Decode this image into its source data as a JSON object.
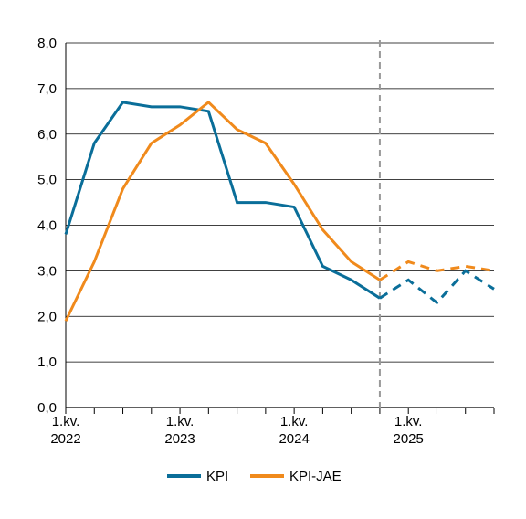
{
  "chart_data": {
    "type": "line",
    "title": "",
    "xlabel": "",
    "ylabel": "",
    "x": [
      "2022Q1",
      "2022Q2",
      "2022Q3",
      "2022Q4",
      "2023Q1",
      "2023Q2",
      "2023Q3",
      "2023Q4",
      "2024Q1",
      "2024Q2",
      "2024Q3",
      "2024Q4",
      "2025Q1",
      "2025Q2",
      "2025Q3",
      "2025Q4"
    ],
    "x_tick_labels": [
      {
        "x": "2022Q1",
        "line1": "1.kv.",
        "line2": "2022"
      },
      {
        "x": "2023Q1",
        "line1": "1.kv.",
        "line2": "2023"
      },
      {
        "x": "2024Q1",
        "line1": "1.kv.",
        "line2": "2024"
      },
      {
        "x": "2025Q1",
        "line1": "1.kv.",
        "line2": "2025"
      }
    ],
    "ylim": [
      0,
      8
    ],
    "y_ticks": [
      "0,0",
      "1,0",
      "2,0",
      "3,0",
      "4,0",
      "5,0",
      "6,0",
      "7,0",
      "8,0"
    ],
    "grid": true,
    "forecast_start": "2024Q4",
    "legend_position": "bottom",
    "series": [
      {
        "name": "KPI",
        "color": "#0a6e99",
        "values": [
          3.8,
          5.8,
          6.7,
          6.6,
          6.6,
          6.5,
          4.5,
          4.5,
          4.4,
          3.1,
          2.8,
          2.4,
          2.8,
          2.3,
          3.0,
          2.6
        ]
      },
      {
        "name": "KPI-JAE",
        "color": "#f08a1c",
        "values": [
          1.9,
          3.2,
          4.8,
          5.8,
          6.2,
          6.7,
          6.1,
          5.8,
          4.9,
          3.9,
          3.2,
          2.8,
          3.2,
          3.0,
          3.1,
          3.0
        ]
      }
    ]
  }
}
